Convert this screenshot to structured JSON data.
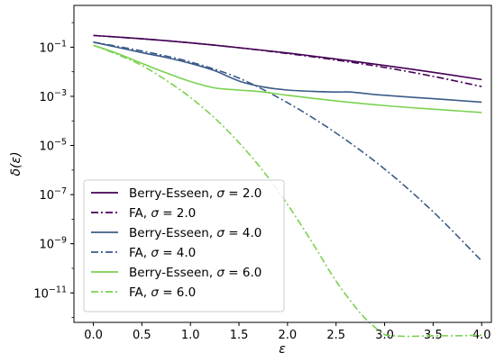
{
  "chart_data": {
    "type": "line",
    "title": "",
    "xlabel": "ε",
    "ylabel": "δ(ε)",
    "xlim": [
      -0.2,
      4.1
    ],
    "ylim_log10": [
      -12.2,
      0.7
    ],
    "yscale": "log",
    "grid": false,
    "legend_position": "lower-left",
    "x_ticks": [
      0.0,
      0.5,
      1.0,
      1.5,
      2.0,
      2.5,
      3.0,
      3.5,
      4.0
    ],
    "x_tick_labels": [
      "0.0",
      "0.5",
      "1.0",
      "1.5",
      "2.0",
      "2.5",
      "3.0",
      "3.5",
      "4.0"
    ],
    "y_ticks_log10": [
      -11,
      -9,
      -7,
      -5,
      -3,
      -1
    ],
    "y_tick_labels": [
      {
        "base": "10",
        "exp": "−11"
      },
      {
        "base": "10",
        "exp": "−9"
      },
      {
        "base": "10",
        "exp": "−7"
      },
      {
        "base": "10",
        "exp": "−5"
      },
      {
        "base": "10",
        "exp": "−3"
      },
      {
        "base": "10",
        "exp": "−1"
      }
    ],
    "series": [
      {
        "name": "Berry-Esseen, σ = 2.0",
        "color": "#440154",
        "dash": "solid",
        "x": [
          0.0,
          0.5,
          1.0,
          1.5,
          2.0,
          2.5,
          3.0,
          3.5,
          4.0
        ],
        "y": [
          0.3,
          0.22,
          0.15,
          0.095,
          0.058,
          0.033,
          0.018,
          0.0095,
          0.0048
        ]
      },
      {
        "name": "FA, σ = 2.0",
        "color": "#440154",
        "dash": "dashdot",
        "x": [
          0.0,
          0.5,
          1.0,
          1.5,
          2.0,
          2.5,
          3.0,
          3.5,
          4.0
        ],
        "y": [
          0.3,
          0.22,
          0.15,
          0.095,
          0.055,
          0.03,
          0.015,
          0.0065,
          0.0025
        ]
      },
      {
        "name": "Berry-Esseen, σ = 4.0",
        "color": "#3b5b87",
        "dash": "solid",
        "x": [
          0.0,
          0.25,
          0.5,
          0.75,
          1.0,
          1.25,
          1.5,
          1.75,
          2.0,
          2.25,
          2.5,
          2.65,
          2.8,
          3.0,
          3.5,
          4.0
        ],
        "y": [
          0.16,
          0.098,
          0.06,
          0.038,
          0.022,
          0.011,
          0.0042,
          0.0024,
          0.0018,
          0.0016,
          0.0015,
          0.0015,
          0.0013,
          0.0011,
          0.0008,
          0.00058
        ]
      },
      {
        "name": "FA, σ = 4.0",
        "color": "#3b5b87",
        "dash": "dashdot",
        "x": [
          0.0,
          0.5,
          1.0,
          1.5,
          2.0,
          2.5,
          3.0,
          3.5,
          4.0
        ],
        "y": [
          0.16,
          0.07,
          0.025,
          0.0055,
          0.00055,
          3.2e-05,
          1.1e-06,
          2e-08,
          2e-10
        ]
      },
      {
        "name": "Berry-Esseen, σ = 6.0",
        "color": "#7ad151",
        "dash": "solid",
        "x": [
          0.0,
          0.25,
          0.5,
          0.75,
          1.0,
          1.25,
          1.5,
          1.75,
          2.0,
          2.5,
          3.0,
          3.5,
          4.0
        ],
        "y": [
          0.12,
          0.055,
          0.022,
          0.009,
          0.004,
          0.0022,
          0.0018,
          0.0015,
          0.0011,
          0.00065,
          0.00042,
          0.0003,
          0.00022
        ]
      },
      {
        "name": "FA, σ = 6.0",
        "color": "#7ad151",
        "dash": "dashdot",
        "x": [
          0.0,
          0.25,
          0.5,
          0.75,
          1.0,
          1.25,
          1.5,
          1.75,
          2.0,
          2.25,
          2.5,
          2.75,
          2.9,
          3.0,
          3.1,
          3.25,
          3.5,
          3.75,
          4.0
        ],
        "y": [
          0.12,
          0.05,
          0.018,
          0.0045,
          0.0009,
          0.00013,
          1.3e-05,
          9e-07,
          4e-08,
          1.2e-09,
          3e-11,
          1.5e-12,
          4e-13,
          2e-13,
          1.8e-13,
          1.7e-13,
          1.8e-13,
          1.8e-13,
          1.9e-13
        ]
      }
    ],
    "legend": [
      {
        "label": "Berry-Esseen, ",
        "sym": "σ",
        "val": " = 2.0"
      },
      {
        "label": "FA, ",
        "sym": "σ",
        "val": " = 2.0"
      },
      {
        "label": "Berry-Esseen, ",
        "sym": "σ",
        "val": " = 4.0"
      },
      {
        "label": "FA, ",
        "sym": "σ",
        "val": " = 4.0"
      },
      {
        "label": "Berry-Esseen, ",
        "sym": "σ",
        "val": " = 6.0"
      },
      {
        "label": "FA, ",
        "sym": "σ",
        "val": " = 6.0"
      }
    ]
  }
}
